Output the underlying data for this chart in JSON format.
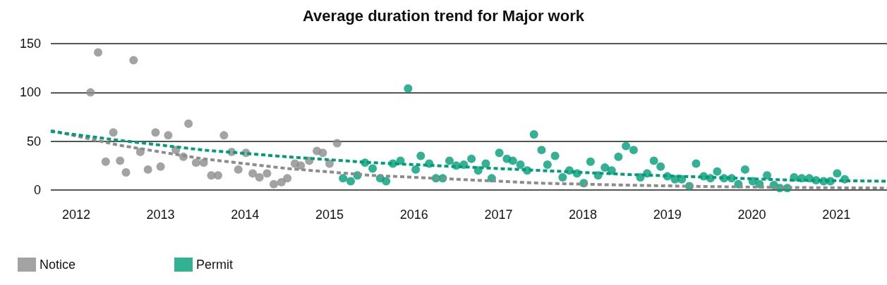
{
  "chart_data": {
    "type": "scatter",
    "title": "Average duration trend for Major work",
    "xlim": [
      2011.7,
      2021.6
    ],
    "xticks": [
      2012,
      2013,
      2014,
      2015,
      2016,
      2017,
      2018,
      2019,
      2020,
      2021
    ],
    "ylim": [
      0,
      150
    ],
    "yticks": [
      0,
      50,
      100,
      150
    ],
    "grid": "y",
    "legend": "bottom left",
    "marker": "circle",
    "series": [
      {
        "name": "Notice",
        "color": "#8c8c8c",
        "x": [
          2012.17,
          2012.26,
          2012.35,
          2012.44,
          2012.52,
          2012.59,
          2012.68,
          2012.76,
          2012.85,
          2012.94,
          2013.0,
          2013.09,
          2013.18,
          2013.27,
          2013.33,
          2013.42,
          2013.51,
          2013.6,
          2013.68,
          2013.75,
          2013.84,
          2013.92,
          2014.01,
          2014.09,
          2014.17,
          2014.26,
          2014.34,
          2014.43,
          2014.5,
          2014.59,
          2014.66,
          2014.76,
          2014.85,
          2014.92,
          2015.0,
          2015.09
        ],
        "values": [
          100,
          141,
          29,
          59,
          30,
          18,
          133,
          39,
          21,
          59,
          24,
          56,
          41,
          34,
          68,
          28,
          28,
          15,
          15,
          56,
          39,
          21,
          38,
          17,
          13,
          17,
          6,
          8,
          12,
          27,
          25,
          30,
          40,
          38,
          27,
          48
        ]
      },
      {
        "name": "Permit",
        "color": "#009e78",
        "x": [
          2015.16,
          2015.25,
          2015.33,
          2015.42,
          2015.51,
          2015.6,
          2015.67,
          2015.75,
          2015.84,
          2015.93,
          2016.02,
          2016.08,
          2016.18,
          2016.26,
          2016.34,
          2016.42,
          2016.5,
          2016.59,
          2016.68,
          2016.76,
          2016.85,
          2016.92,
          2017.01,
          2017.1,
          2017.17,
          2017.26,
          2017.34,
          2017.42,
          2017.51,
          2017.58,
          2017.67,
          2017.76,
          2017.84,
          2017.93,
          2018.01,
          2018.09,
          2018.18,
          2018.26,
          2018.34,
          2018.42,
          2018.51,
          2018.6,
          2018.68,
          2018.76,
          2018.84,
          2018.92,
          2019.0,
          2019.09,
          2019.17,
          2019.26,
          2019.34,
          2019.43,
          2019.51,
          2019.59,
          2019.67,
          2019.76,
          2019.84,
          2019.92,
          2020.01,
          2020.09,
          2020.18,
          2020.26,
          2020.33,
          2020.42,
          2020.5,
          2020.59,
          2020.68,
          2020.76,
          2020.85,
          2020.93,
          2021.01,
          2021.1
        ],
        "values": [
          12,
          9,
          15,
          28,
          22,
          12,
          9,
          27,
          30,
          104,
          21,
          35,
          27,
          12,
          12,
          30,
          25,
          26,
          32,
          20,
          27,
          12,
          38,
          32,
          30,
          26,
          20,
          57,
          41,
          26,
          35,
          13,
          20,
          17,
          7,
          29,
          15,
          23,
          20,
          34,
          45,
          41,
          13,
          17,
          30,
          24,
          14,
          11,
          11,
          4,
          27,
          14,
          12,
          19,
          12,
          12,
          6,
          21,
          9,
          6,
          15,
          5,
          2,
          2,
          13,
          12,
          12,
          10,
          9,
          9,
          17,
          11
        ]
      },
      {
        "type": "line",
        "color": "#8c8c8c",
        "marker": "none",
        "line_style": "dashed",
        "x": [
          2011.7,
          2012.5,
          2013.5,
          2014.5,
          2015.5,
          2016.5,
          2017.5,
          2018.5,
          2019.5,
          2020.5,
          2021.6
        ],
        "values": [
          61,
          46,
          32,
          22,
          15,
          11,
          7,
          5,
          3.5,
          2.5,
          2
        ]
      },
      {
        "type": "line",
        "color": "#009e78",
        "marker": "none",
        "line_style": "dashed",
        "x": [
          2011.7,
          2012.5,
          2013.5,
          2014.5,
          2015.5,
          2016.5,
          2017.5,
          2018.5,
          2019.5,
          2020.5,
          2021.6
        ],
        "values": [
          60,
          51,
          41,
          34,
          28,
          24,
          20,
          16,
          13,
          10,
          9
        ]
      }
    ]
  }
}
